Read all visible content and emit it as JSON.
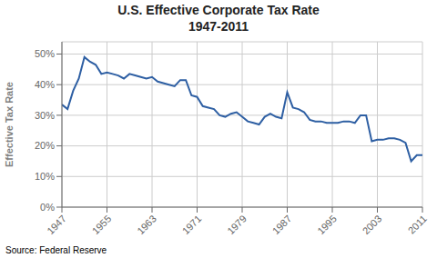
{
  "chart_data": {
    "type": "line",
    "title": "U.S. Effective Corporate Tax Rate",
    "subtitle": "1947-2011",
    "ylabel": "Effective Tax Rate",
    "annotations": [
      "Source: Federal Reserve"
    ],
    "color": "#2E5FA3",
    "grid": true,
    "xlim": [
      1947,
      2011
    ],
    "ylim": [
      0,
      0.54
    ],
    "xticks": [
      1947,
      1955,
      1963,
      1971,
      1979,
      1987,
      1995,
      2003,
      2011
    ],
    "yticks": [
      {
        "value": 0.0,
        "label": "0%"
      },
      {
        "value": 0.1,
        "label": "10%"
      },
      {
        "value": 0.2,
        "label": "20%"
      },
      {
        "value": 0.3,
        "label": "30%"
      },
      {
        "value": 0.4,
        "label": "40%"
      },
      {
        "value": 0.5,
        "label": "50%"
      }
    ],
    "x": [
      1947,
      1948,
      1949,
      1950,
      1951,
      1952,
      1953,
      1954,
      1955,
      1956,
      1957,
      1958,
      1959,
      1960,
      1961,
      1962,
      1963,
      1964,
      1965,
      1966,
      1967,
      1968,
      1969,
      1970,
      1971,
      1972,
      1973,
      1974,
      1975,
      1976,
      1977,
      1978,
      1979,
      1980,
      1981,
      1982,
      1983,
      1984,
      1985,
      1986,
      1987,
      1988,
      1989,
      1990,
      1991,
      1992,
      1993,
      1994,
      1995,
      1996,
      1997,
      1998,
      1999,
      2000,
      2001,
      2002,
      2003,
      2004,
      2005,
      2006,
      2007,
      2008,
      2009,
      2010,
      2011
    ],
    "values": [
      0.335,
      0.32,
      0.38,
      0.42,
      0.49,
      0.475,
      0.465,
      0.435,
      0.44,
      0.435,
      0.43,
      0.42,
      0.435,
      0.43,
      0.425,
      0.42,
      0.425,
      0.41,
      0.405,
      0.4,
      0.395,
      0.415,
      0.415,
      0.365,
      0.36,
      0.33,
      0.325,
      0.32,
      0.3,
      0.295,
      0.305,
      0.31,
      0.295,
      0.28,
      0.275,
      0.27,
      0.295,
      0.305,
      0.295,
      0.29,
      0.375,
      0.325,
      0.32,
      0.31,
      0.285,
      0.28,
      0.28,
      0.275,
      0.275,
      0.275,
      0.28,
      0.28,
      0.275,
      0.3,
      0.3,
      0.215,
      0.22,
      0.22,
      0.225,
      0.225,
      0.22,
      0.21,
      0.15,
      0.17,
      0.17
    ]
  }
}
